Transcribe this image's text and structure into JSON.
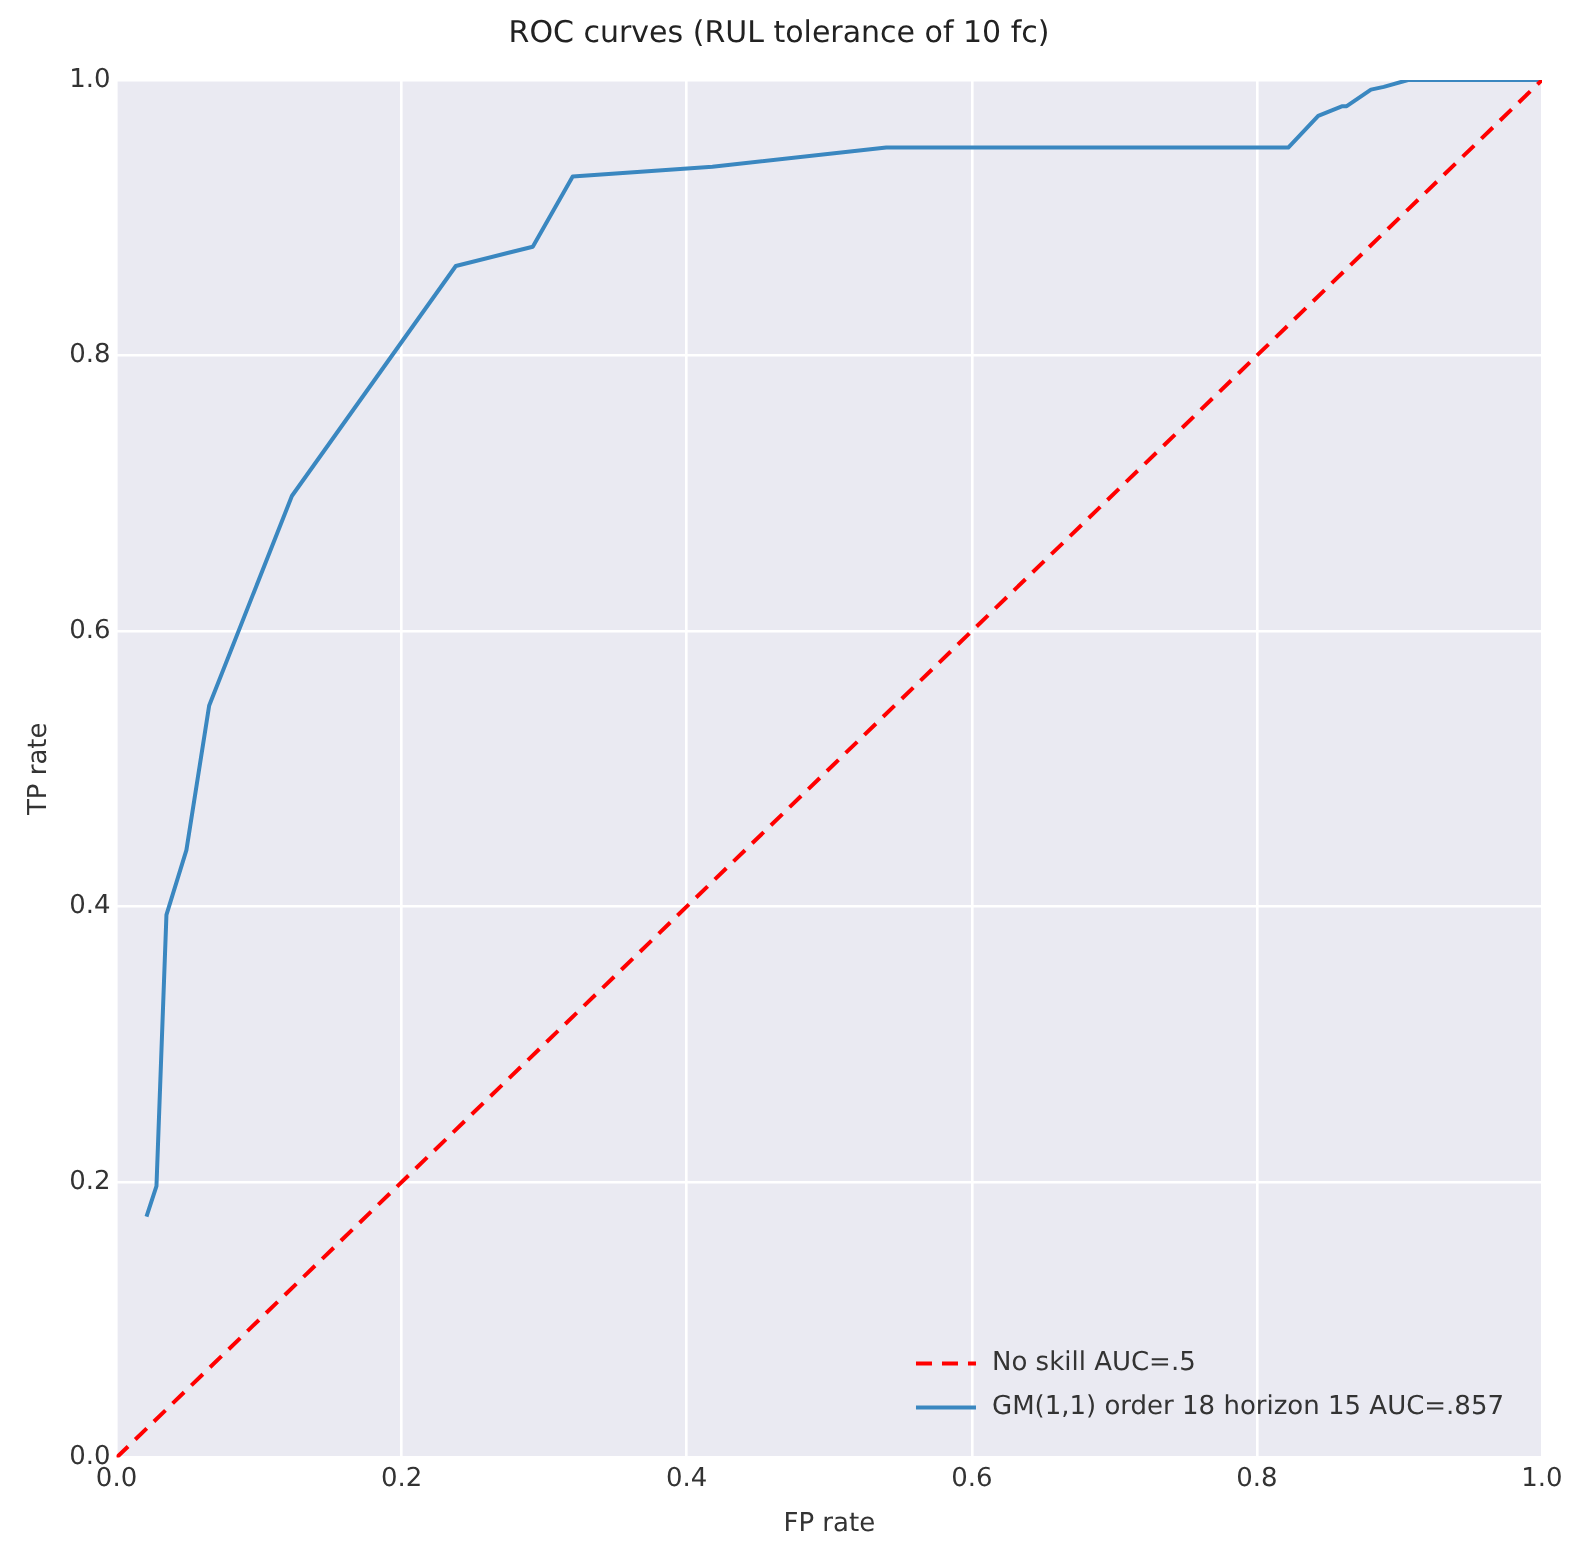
{
  "chart_data": {
    "type": "line",
    "title": "ROC curves (RUL tolerance of 10 fc)",
    "xlabel": "FP rate",
    "ylabel": "TP rate",
    "xlim": [
      0,
      1
    ],
    "ylim": [
      0,
      1
    ],
    "xticks": [
      {
        "value": 0,
        "label": "0.0"
      },
      {
        "value": 0.2,
        "label": "0.2"
      },
      {
        "value": 0.4,
        "label": "0.4"
      },
      {
        "value": 0.6,
        "label": "0.6"
      },
      {
        "value": 0.8,
        "label": "0.8"
      },
      {
        "value": 1,
        "label": "1.0"
      }
    ],
    "yticks": [
      {
        "value": 0,
        "label": "0.0"
      },
      {
        "value": 0.2,
        "label": "0.2"
      },
      {
        "value": 0.4,
        "label": "0.4"
      },
      {
        "value": 0.6,
        "label": "0.6"
      },
      {
        "value": 0.8,
        "label": "0.8"
      },
      {
        "value": 1,
        "label": "1.0"
      }
    ],
    "grid": true,
    "legend": "bottom right",
    "marker": "none",
    "series": [
      {
        "name": "No skill AUC=.5",
        "color": "#ff0000",
        "line_style": "dashed",
        "x": [
          0,
          1
        ],
        "values": [
          0,
          1
        ]
      },
      {
        "name": "GM(1,1) order 18 horizon 15 AUC=.857",
        "color": "#3a87c0",
        "line_style": "solid",
        "x": [
          0.021,
          0.028,
          0.035,
          0.049,
          0.065,
          0.123,
          0.238,
          0.292,
          0.32,
          0.418,
          0.54,
          0.822,
          0.843,
          0.86,
          0.863,
          0.88,
          0.889,
          0.906,
          1
        ],
        "values": [
          0.175,
          0.197,
          0.394,
          0.441,
          0.546,
          0.698,
          0.865,
          0.879,
          0.93,
          0.937,
          0.951,
          0.951,
          0.974,
          0.981,
          0.981,
          0.993,
          0.995,
          1,
          1
        ]
      }
    ]
  }
}
